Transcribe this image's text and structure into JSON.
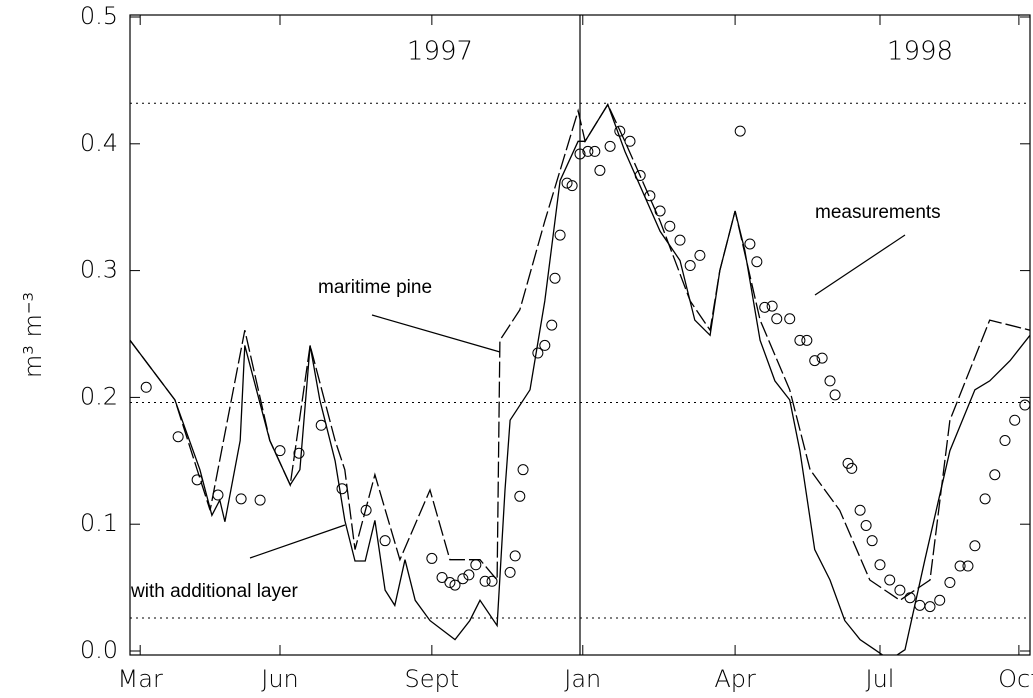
{
  "chart_data": {
    "type": "line",
    "y_label": "m³ m⁻³",
    "xlim": [
      0,
      19.44
    ],
    "xticks": [
      {
        "value": 0.22,
        "label": "Mar"
      },
      {
        "value": 3.24,
        "label": "Jun"
      },
      {
        "value": 6.52,
        "label": "Sept"
      },
      {
        "value": 9.78,
        "label": "Jan"
      },
      {
        "value": 13.07,
        "label": "Apr"
      },
      {
        "value": 16.2,
        "label": "Jul"
      },
      {
        "value": 19.2,
        "label": "Oct"
      }
    ],
    "ylim": [
      0,
      0.5
    ],
    "yticks": [
      {
        "value": 0,
        "label": "0.0"
      },
      0.1,
      0.2,
      0.3,
      0.4,
      0.5
    ],
    "reference_lines": {
      "y": [
        0.432,
        0.196,
        0.026
      ],
      "x": [
        9.72
      ]
    },
    "annotations": [
      {
        "text": "1997"
      },
      {
        "text": "1998"
      }
    ],
    "series": [
      {
        "name": "with additional layer",
        "style": "solid",
        "color": "#000000",
        "x": [
          0,
          0.97,
          1.51,
          1.77,
          1.94,
          2.05,
          2.38,
          2.48,
          3.02,
          3.46,
          3.67,
          3.89,
          4.1,
          4.43,
          4.64,
          4.86,
          5.08,
          5.29,
          5.51,
          5.72,
          5.94,
          6.16,
          6.48,
          7.02,
          7.34,
          7.56,
          7.93,
          8.1,
          8.21,
          8.64,
          8.96,
          9.29,
          9.68,
          9.83,
          10.32,
          10.69,
          11.45,
          11.88,
          12.2,
          12.53,
          12.74,
          13.07,
          13.28,
          13.61,
          13.93,
          14.25,
          14.47,
          14.79,
          15.12,
          15.44,
          15.77,
          16.09,
          16.41,
          16.74,
          17.17,
          17.71,
          18.25,
          18.57,
          19.01,
          19.44
        ],
        "values": [
          0.245,
          0.198,
          0.143,
          0.107,
          0.119,
          0.102,
          0.166,
          0.241,
          0.166,
          0.131,
          0.143,
          0.241,
          0.198,
          0.15,
          0.103,
          0.071,
          0.071,
          0.103,
          0.048,
          0.036,
          0.072,
          0.04,
          0.024,
          0.009,
          0.024,
          0.04,
          0.02,
          0.127,
          0.182,
          0.206,
          0.276,
          0.371,
          0.402,
          0.402,
          0.431,
          0.394,
          0.331,
          0.308,
          0.261,
          0.249,
          0.3,
          0.347,
          0.316,
          0.245,
          0.213,
          0.198,
          0.158,
          0.08,
          0.056,
          0.024,
          0.009,
          0.001,
          -0.007,
          0.001,
          0.072,
          0.158,
          0.206,
          0.213,
          0.229,
          0.249
        ]
      },
      {
        "name": "maritime pine",
        "style": "dashed",
        "color": "#000000",
        "x": [
          0,
          0.97,
          1.73,
          2.48,
          3.02,
          3.46,
          3.89,
          4.43,
          4.64,
          4.86,
          5.29,
          5.83,
          6.48,
          6.91,
          7.56,
          7.93,
          7.99,
          8.42,
          8.96,
          9.68,
          9.83,
          10.32,
          10.69,
          11.45,
          12.1,
          12.53,
          12.74,
          13.07,
          13.61,
          14.25,
          14.69,
          15.33,
          15.98,
          16.63,
          17.28,
          17.71,
          18.57,
          19.44
        ],
        "values": [
          0.245,
          0.198,
          0.111,
          0.253,
          0.166,
          0.131,
          0.241,
          0.166,
          0.143,
          0.08,
          0.139,
          0.072,
          0.127,
          0.072,
          0.072,
          0.056,
          0.245,
          0.269,
          0.339,
          0.426,
          0.402,
          0.431,
          0.402,
          0.339,
          0.276,
          0.253,
          0.3,
          0.347,
          0.261,
          0.206,
          0.143,
          0.111,
          0.056,
          0.04,
          0.056,
          0.182,
          0.261,
          0.253
        ]
      },
      {
        "name": "measurements",
        "style": "circles",
        "color": "#000000",
        "x": [
          0.35,
          1.04,
          1.45,
          1.9,
          2.4,
          2.81,
          3.24,
          3.65,
          4.13,
          4.58,
          5.1,
          5.51,
          6.52,
          6.74,
          6.91,
          7.02,
          7.19,
          7.32,
          7.47,
          7.67,
          7.82,
          8.21,
          8.32,
          8.42,
          8.49,
          8.81,
          8.96,
          9.11,
          9.18,
          9.29,
          9.44,
          9.55,
          9.72,
          9.89,
          10.04,
          10.15,
          10.37,
          10.58,
          10.8,
          11.02,
          11.23,
          11.45,
          11.66,
          11.88,
          12.1,
          12.31,
          13.18,
          13.39,
          13.54,
          13.71,
          13.87,
          13.97,
          14.25,
          14.47,
          14.62,
          14.79,
          14.95,
          15.12,
          15.23,
          15.51,
          15.59,
          15.77,
          15.9,
          16.03,
          16.2,
          16.41,
          16.63,
          16.85,
          17.06,
          17.28,
          17.49,
          17.71,
          17.93,
          18.1,
          18.25,
          18.47,
          18.68,
          18.9,
          19.11,
          19.33
        ],
        "values": [
          0.208,
          0.169,
          0.135,
          0.123,
          0.12,
          0.119,
          0.158,
          0.156,
          0.178,
          0.128,
          0.111,
          0.087,
          0.073,
          0.058,
          0.054,
          0.052,
          0.057,
          0.06,
          0.068,
          0.055,
          0.055,
          0.062,
          0.075,
          0.122,
          0.143,
          0.235,
          0.241,
          0.257,
          0.294,
          0.328,
          0.369,
          0.367,
          0.392,
          0.394,
          0.394,
          0.379,
          0.398,
          0.41,
          0.402,
          0.375,
          0.359,
          0.347,
          0.335,
          0.324,
          0.304,
          0.312,
          0.41,
          0.321,
          0.307,
          0.271,
          0.272,
          0.262,
          0.262,
          0.245,
          0.245,
          0.229,
          0.231,
          0.213,
          0.202,
          0.148,
          0.144,
          0.111,
          0.099,
          0.087,
          0.068,
          0.056,
          0.048,
          0.042,
          0.036,
          0.035,
          0.04,
          0.054,
          0.067,
          0.067,
          0.083,
          0.12,
          0.139,
          0.166,
          0.182,
          0.194
        ]
      }
    ]
  }
}
